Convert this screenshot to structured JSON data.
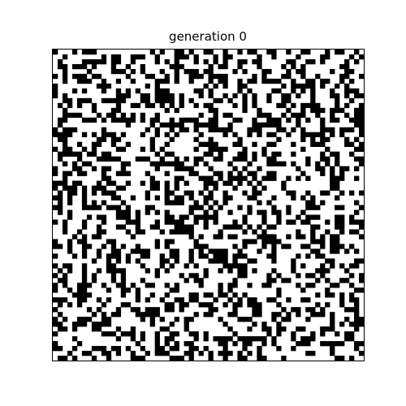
{
  "figure": {
    "title": "generation 0",
    "grid": {
      "rows": 64,
      "cols": 64,
      "alive_fraction": 0.38,
      "seed": 7
    },
    "colors": {
      "alive": "#000000",
      "dead": "#ffffff",
      "border": "#000000"
    }
  }
}
